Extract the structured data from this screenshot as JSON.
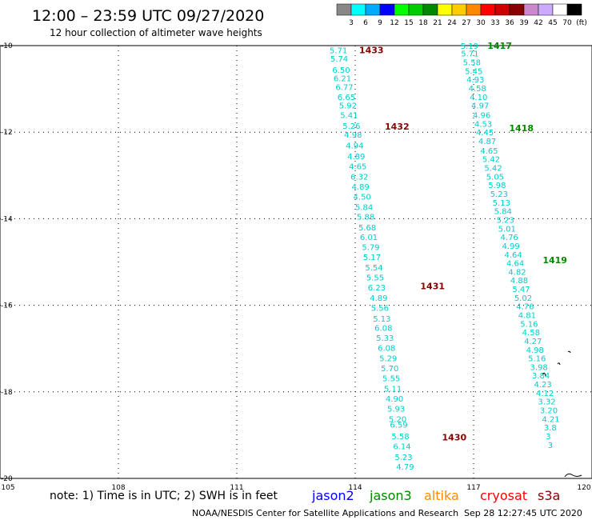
{
  "header": {
    "title": "12:00 – 23:59 UTC 09/27/2020",
    "subtitle": "12 hour collection of altimeter wave heights"
  },
  "color_scale": {
    "labels": [
      "3",
      "6",
      "9",
      "12",
      "15",
      "18",
      "21",
      "24",
      "27",
      "30",
      "33",
      "36",
      "39",
      "42",
      "45",
      "70",
      "(ft)"
    ],
    "colors": [
      "#888888",
      "#00ffff",
      "#00aaff",
      "#0000ff",
      "#00ff00",
      "#00cc00",
      "#008800",
      "#ffff00",
      "#ffcc00",
      "#ff8800",
      "#ff0000",
      "#cc0000",
      "#880000",
      "#cc88cc",
      "#ccaaff",
      "#ffffff",
      "#000000"
    ]
  },
  "footer": {
    "note": "note: 1) Time is in UTC; 2) SWH is in feet",
    "legend": [
      {
        "label": "jason2",
        "color": "#0000ff"
      },
      {
        "label": "jason3",
        "color": "#008800"
      },
      {
        "label": "altika",
        "color": "#ff8800"
      },
      {
        "label": "cryosat",
        "color": "#ff0000"
      },
      {
        "label": "s3a",
        "color": "#880000"
      }
    ],
    "credit": "NOAA/NESDIS Center for Satellite Applications and Research",
    "timestamp": "Sep 28 12:27:45 UTC 2020"
  },
  "chart_data": {
    "type": "scatter",
    "x_ticks": [
      "105",
      "108",
      "111",
      "114",
      "117",
      "120"
    ],
    "y_ticks": [
      "-10",
      "-12",
      "-14",
      "-16",
      "-18",
      "-20"
    ],
    "xlim": [
      105,
      120
    ],
    "ylim": [
      -20,
      -10
    ],
    "grid": true,
    "value_color": "#00cccc",
    "tracks": [
      {
        "points": [
          [
            113.35,
            -10.1,
            "5.71"
          ],
          [
            113.37,
            -10.3,
            "5.74"
          ],
          [
            113.42,
            -10.55,
            "6.50"
          ],
          [
            113.45,
            -10.75,
            "6.21"
          ],
          [
            113.5,
            -10.95,
            "6.77"
          ],
          [
            113.55,
            -11.18,
            "6.65"
          ],
          [
            113.59,
            -11.38,
            "5.92"
          ],
          [
            113.62,
            -11.6,
            "5.41"
          ],
          [
            113.68,
            -11.85,
            "5.26"
          ],
          [
            113.72,
            -12.05,
            "4.98"
          ],
          [
            113.76,
            -12.3,
            "4.94"
          ],
          [
            113.8,
            -12.55,
            "4.89"
          ],
          [
            113.84,
            -12.78,
            "4.65"
          ],
          [
            113.88,
            -13.02,
            "6.32"
          ],
          [
            113.91,
            -13.25,
            "4.89"
          ],
          [
            113.95,
            -13.48,
            "4.50"
          ],
          [
            114.0,
            -13.72,
            "5.84"
          ],
          [
            114.04,
            -13.95,
            "5.88"
          ],
          [
            114.08,
            -14.2,
            "5.68"
          ],
          [
            114.12,
            -14.42,
            "6.01"
          ],
          [
            114.17,
            -14.65,
            "5.79"
          ],
          [
            114.2,
            -14.88,
            "5.17"
          ],
          [
            114.25,
            -15.12,
            "5.54"
          ],
          [
            114.28,
            -15.35,
            "5.55"
          ],
          [
            114.32,
            -15.58,
            "6.23"
          ],
          [
            114.37,
            -15.82,
            "4.89"
          ],
          [
            114.4,
            -16.05,
            "5.56"
          ],
          [
            114.45,
            -16.3,
            "5.13"
          ],
          [
            114.49,
            -16.52,
            "6.08"
          ],
          [
            114.53,
            -16.75,
            "5.33"
          ],
          [
            114.57,
            -16.98,
            "6.08"
          ],
          [
            114.61,
            -17.22,
            "5.29"
          ],
          [
            114.65,
            -17.45,
            "5.70"
          ],
          [
            114.69,
            -17.68,
            "5.55"
          ],
          [
            114.73,
            -17.92,
            "5.11"
          ],
          [
            114.77,
            -18.15,
            "4.90"
          ],
          [
            114.81,
            -18.38,
            "5.93"
          ],
          [
            114.85,
            -18.62,
            "5.20"
          ],
          [
            114.88,
            -18.75,
            "6.59"
          ],
          [
            114.92,
            -19.02,
            "5.58"
          ],
          [
            114.96,
            -19.25,
            "6.14"
          ],
          [
            115.0,
            -19.5,
            "5.23"
          ],
          [
            115.04,
            -19.72,
            "4.79"
          ]
        ],
        "passes": [
          [
            114.1,
            -10.1,
            "1433"
          ],
          [
            114.75,
            -11.87,
            "1432"
          ],
          [
            115.65,
            -15.55,
            "1431"
          ],
          [
            116.2,
            -19.05,
            "1430"
          ]
        ]
      },
      {
        "points": [
          [
            116.67,
            -10.0,
            "5.19"
          ],
          [
            116.68,
            -10.18,
            "5.71"
          ],
          [
            116.73,
            -10.38,
            "5.58"
          ],
          [
            116.78,
            -10.58,
            "5.45"
          ],
          [
            116.82,
            -10.78,
            "4.93"
          ],
          [
            116.87,
            -10.98,
            "4.58"
          ],
          [
            116.9,
            -11.18,
            "4.10"
          ],
          [
            116.94,
            -11.38,
            "4.97"
          ],
          [
            116.98,
            -11.6,
            "4.96"
          ],
          [
            117.02,
            -11.8,
            "4.53"
          ],
          [
            117.06,
            -12.0,
            "4.45"
          ],
          [
            117.12,
            -12.2,
            "4.87"
          ],
          [
            117.17,
            -12.42,
            "4.65"
          ],
          [
            117.22,
            -12.62,
            "5.42"
          ],
          [
            117.27,
            -12.82,
            "5.42"
          ],
          [
            117.32,
            -13.02,
            "5.05"
          ],
          [
            117.37,
            -13.22,
            "5.98"
          ],
          [
            117.42,
            -13.42,
            "5.23"
          ],
          [
            117.48,
            -13.62,
            "5.13"
          ],
          [
            117.52,
            -13.82,
            "5.84"
          ],
          [
            117.58,
            -14.02,
            "5.23"
          ],
          [
            117.62,
            -14.22,
            "5.01"
          ],
          [
            117.68,
            -14.42,
            "4.76"
          ],
          [
            117.72,
            -14.62,
            "4.99"
          ],
          [
            117.78,
            -14.82,
            "4.64"
          ],
          [
            117.83,
            -15.02,
            "4.64"
          ],
          [
            117.88,
            -15.22,
            "4.82"
          ],
          [
            117.93,
            -15.42,
            "4.88"
          ],
          [
            117.98,
            -15.62,
            "5.47"
          ],
          [
            118.03,
            -15.82,
            "5.02"
          ],
          [
            118.08,
            -16.02,
            "4.76"
          ],
          [
            118.13,
            -16.22,
            "4.81"
          ],
          [
            118.18,
            -16.42,
            "5.16"
          ],
          [
            118.23,
            -16.62,
            "4.58"
          ],
          [
            118.28,
            -16.82,
            "4.27"
          ],
          [
            118.33,
            -17.02,
            "4.98"
          ],
          [
            118.38,
            -17.22,
            "5.16"
          ],
          [
            118.43,
            -17.42,
            "3.98"
          ],
          [
            118.48,
            -17.62,
            "3.84"
          ],
          [
            118.53,
            -17.82,
            "4.23"
          ],
          [
            118.58,
            -18.02,
            "4.12"
          ],
          [
            118.63,
            -18.22,
            "3.32"
          ],
          [
            118.68,
            -18.42,
            "3.20"
          ],
          [
            118.73,
            -18.62,
            "4.21"
          ],
          [
            118.78,
            -18.82,
            "3.8"
          ],
          [
            118.83,
            -19.02,
            "3"
          ],
          [
            118.88,
            -19.22,
            "3"
          ]
        ],
        "passes": [
          [
            117.35,
            -10.0,
            "1417"
          ],
          [
            117.9,
            -11.9,
            "1418"
          ],
          [
            118.75,
            -14.95,
            "1419"
          ]
        ]
      }
    ]
  }
}
